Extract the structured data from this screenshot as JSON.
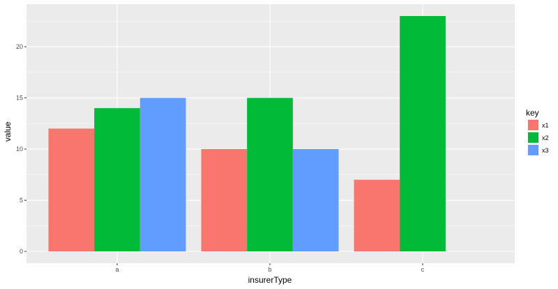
{
  "chart_data": {
    "type": "bar",
    "categories": [
      "a",
      "b",
      "c"
    ],
    "series": [
      {
        "name": "x1",
        "color": "#F8766D",
        "values": [
          12,
          10,
          7
        ]
      },
      {
        "name": "x2",
        "color": "#00BA38",
        "values": [
          14,
          15,
          23
        ]
      },
      {
        "name": "x3",
        "color": "#619CFF",
        "values": [
          15,
          10,
          null
        ]
      }
    ],
    "title": "",
    "xlabel": "insurerType",
    "ylabel": "value",
    "ylim": [
      0,
      24.2
    ],
    "yticks": [
      0,
      5,
      10,
      15,
      20
    ],
    "grid": true,
    "legend": {
      "title": "key",
      "position": "right"
    },
    "colors": {
      "panel": "#EBEBEB",
      "grid": "#FFFFFF"
    }
  }
}
